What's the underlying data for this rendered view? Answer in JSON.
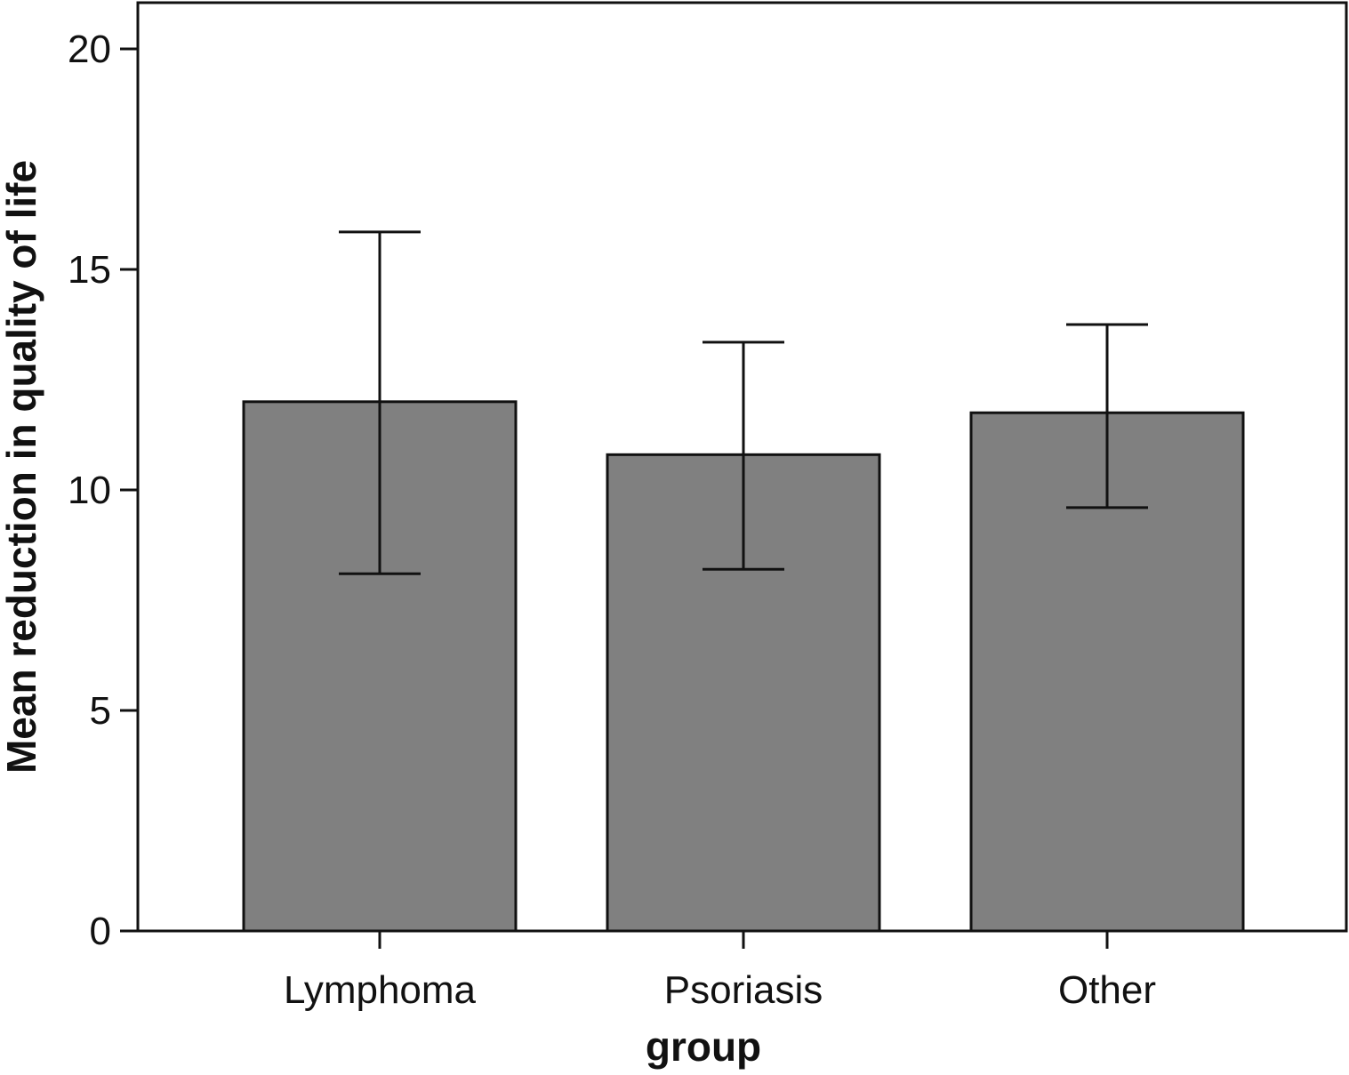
{
  "chart_data": {
    "type": "bar",
    "categories": [
      "Lymphoma",
      "Psoriasis",
      "Other"
    ],
    "values": [
      12.0,
      10.8,
      11.75
    ],
    "error_bars": [
      {
        "low": 8.1,
        "high": 15.85
      },
      {
        "low": 8.2,
        "high": 13.35
      },
      {
        "low": 9.6,
        "high": 13.75
      }
    ],
    "xlabel": "group",
    "ylabel": "Mean reduction in quality of life",
    "ylim": [
      0,
      21
    ],
    "yticks": [
      "0",
      "5",
      "10",
      "15",
      "20"
    ],
    "grid": false,
    "legend": "none",
    "colors": {
      "bar_fill": "#808080",
      "bar_stroke": "#111111",
      "axis": "#111111",
      "background": "#ffffff"
    }
  }
}
